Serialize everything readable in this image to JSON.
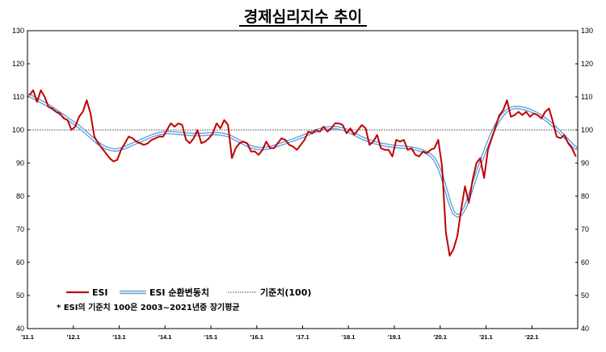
{
  "chart_data": {
    "type": "line",
    "title": "경제심리지수 추이",
    "ylim": [
      40,
      130
    ],
    "yticks": [
      40,
      50,
      60,
      70,
      80,
      90,
      100,
      110,
      120,
      130
    ],
    "x_start": "2011-01",
    "x_end": "2022-12",
    "x_tick_labels": [
      "'11.1",
      "'12.1",
      "'13.1",
      "'14.1",
      "'15.1",
      "'16.1",
      "'17.1",
      "'18.1",
      "'19.1",
      "'20.1",
      "'21.1",
      "'22.1"
    ],
    "reference_line": {
      "name": "기준치(100)",
      "value": 100
    },
    "note": "* ESI의 기준치 100은 2003~2021년중 장기평균",
    "series": [
      {
        "name": "ESI",
        "color": "#c00000",
        "values": [
          110.5,
          112.0,
          108.5,
          112.0,
          110.0,
          107.0,
          106.5,
          105.5,
          105.0,
          103.5,
          103.0,
          100.0,
          101.0,
          104.0,
          105.5,
          109.0,
          105.0,
          98.0,
          96.0,
          94.5,
          93.0,
          91.5,
          90.5,
          91.0,
          94.0,
          96.0,
          98.0,
          97.5,
          96.5,
          96.0,
          95.5,
          96.0,
          97.0,
          97.5,
          98.0,
          98.0,
          100.0,
          102.0,
          101.0,
          102.0,
          101.5,
          97.0,
          96.0,
          97.5,
          100.0,
          96.0,
          96.5,
          97.5,
          99.0,
          102.0,
          100.5,
          103.0,
          101.5,
          91.5,
          94.5,
          96.0,
          96.5,
          96.0,
          93.5,
          93.5,
          92.5,
          94.0,
          96.5,
          94.5,
          94.5,
          96.0,
          97.5,
          97.0,
          95.5,
          95.0,
          94.0,
          95.5,
          97.0,
          99.5,
          99.0,
          100.0,
          99.5,
          101.0,
          99.5,
          100.5,
          102.0,
          102.0,
          101.5,
          99.0,
          100.5,
          98.5,
          100.0,
          101.5,
          100.5,
          95.5,
          96.5,
          98.5,
          94.5,
          94.0,
          94.0,
          92.0,
          97.0,
          96.5,
          97.0,
          94.0,
          94.5,
          92.5,
          92.0,
          93.5,
          93.0,
          94.0,
          94.5,
          97.0,
          89.0,
          69.0,
          62.0,
          64.0,
          68.0,
          76.0,
          83.0,
          78.0,
          85.0,
          90.0,
          91.5,
          85.5,
          94.0,
          97.5,
          101.0,
          104.5,
          106.0,
          109.0,
          104.0,
          104.5,
          105.5,
          104.5,
          105.5,
          104.0,
          105.0,
          104.5,
          103.5,
          105.5,
          106.5,
          102.5,
          98.0,
          97.5,
          98.5,
          96.0,
          94.5,
          92.0
        ]
      },
      {
        "name": "ESI 순환변동치",
        "color": "#5b9bd5",
        "values": [
          110.5,
          109.8,
          109.2,
          108.6,
          108.0,
          107.3,
          106.6,
          105.8,
          105.0,
          104.2,
          103.4,
          102.6,
          101.8,
          101.0,
          100.0,
          99.0,
          98.0,
          97.0,
          96.0,
          95.2,
          94.6,
          94.2,
          94.0,
          94.0,
          94.3,
          94.7,
          95.2,
          95.7,
          96.2,
          96.7,
          97.2,
          97.7,
          98.2,
          98.6,
          98.9,
          99.1,
          99.2,
          99.2,
          99.1,
          99.0,
          98.9,
          98.8,
          98.7,
          98.6,
          98.6,
          98.6,
          98.7,
          98.8,
          98.9,
          98.9,
          98.8,
          98.6,
          98.3,
          97.8,
          97.2,
          96.6,
          96.0,
          95.4,
          94.9,
          94.6,
          94.4,
          94.4,
          94.5,
          94.7,
          95.0,
          95.4,
          95.8,
          96.2,
          96.6,
          97.0,
          97.4,
          97.8,
          98.3,
          98.8,
          99.3,
          99.7,
          100.1,
          100.4,
          100.6,
          100.7,
          100.7,
          100.6,
          100.3,
          99.9,
          99.4,
          98.8,
          98.2,
          97.6,
          97.1,
          96.7,
          96.3,
          96.0,
          95.7,
          95.5,
          95.3,
          95.1,
          95.0,
          94.9,
          94.8,
          94.7,
          94.5,
          94.3,
          94.0,
          93.6,
          93.1,
          92.4,
          91.2,
          89.0,
          86.0,
          82.0,
          78.0,
          75.0,
          74.0,
          74.6,
          76.5,
          79.5,
          83.0,
          86.5,
          89.8,
          93.0,
          96.0,
          98.8,
          101.2,
          103.2,
          104.8,
          105.9,
          106.5,
          106.8,
          106.8,
          106.6,
          106.3,
          105.9,
          105.4,
          104.8,
          104.1,
          103.3,
          102.4,
          101.4,
          100.3,
          99.2,
          98.0,
          96.8,
          95.6,
          94.5
        ]
      }
    ],
    "legend": {
      "placement": "bottom-left"
    }
  }
}
